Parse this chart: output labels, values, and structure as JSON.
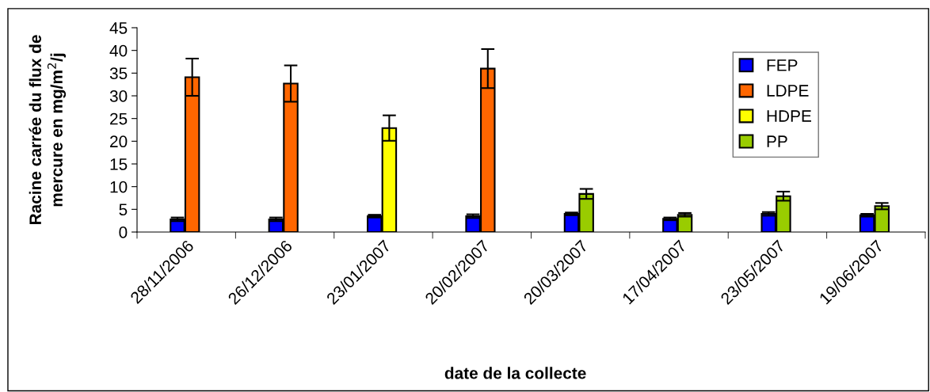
{
  "chart_data": {
    "type": "bar",
    "xlabel": "date de la collecte",
    "ylabel": "Racine carrée du flux de mercure en mg/m$^{2}$/j",
    "categories": [
      "28/11/2006",
      "26/12/2006",
      "23/01/2007",
      "20/02/2007",
      "20/03/2007",
      "17/04/2007",
      "23/05/2007",
      "19/06/2007"
    ],
    "series": [
      {
        "name": "FEP",
        "color": "#0000ff",
        "values": [
          2.8,
          2.8,
          3.5,
          3.5,
          4.0,
          2.9,
          4.0,
          3.7
        ],
        "errors": [
          0.4,
          0.4,
          0.3,
          0.4,
          0.3,
          0.3,
          0.4,
          0.3
        ]
      },
      {
        "name": "LDPE",
        "color": "#ff6600",
        "values": [
          34.1,
          32.7,
          null,
          36.0,
          null,
          null,
          null,
          null
        ],
        "errors": [
          4.1,
          4.0,
          null,
          4.3,
          null,
          null,
          null,
          null
        ]
      },
      {
        "name": "HDPE",
        "color": "#ffff00",
        "values": [
          null,
          null,
          22.9,
          null,
          null,
          null,
          null,
          null
        ],
        "errors": [
          null,
          null,
          2.8,
          null,
          null,
          null,
          null,
          null
        ]
      },
      {
        "name": "PP",
        "color": "#99cc00",
        "values": [
          null,
          null,
          null,
          null,
          8.4,
          3.8,
          7.9,
          5.7
        ],
        "errors": [
          null,
          null,
          null,
          null,
          1.1,
          0.4,
          1.0,
          0.7
        ]
      }
    ],
    "ylim": [
      0,
      45
    ],
    "yticks": [
      0,
      5,
      10,
      15,
      20,
      25,
      30,
      35,
      40,
      45
    ],
    "grid": false,
    "legend": "top right"
  }
}
